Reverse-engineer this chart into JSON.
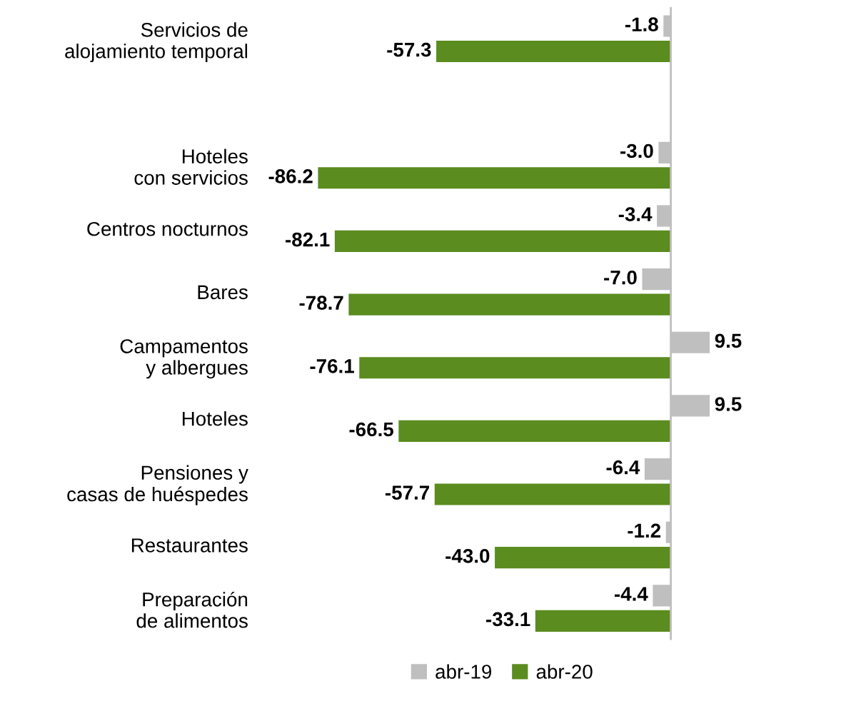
{
  "chart_data": {
    "type": "bar",
    "orientation": "horizontal",
    "legend": "bottom",
    "grid": false,
    "categories": [
      "Servicios de\nalojamiento temporal",
      null,
      "Hoteles\ncon servicios",
      "Centros nocturnos",
      "Bares",
      "Campamentos\ny albergues",
      "Hoteles",
      "Pensiones y\ncasas de huéspedes",
      "Restaurantes",
      "Preparación\nde alimentos"
    ],
    "series": [
      {
        "name": "abr-19",
        "color": "#bfbfbf",
        "values": [
          -1.8,
          null,
          -3.0,
          -3.4,
          -7.0,
          9.5,
          9.5,
          -6.4,
          -1.2,
          -4.4
        ],
        "value_labels": [
          "-1.8",
          null,
          "-3.0",
          "-3.4",
          "-7.0",
          "9.5",
          "9.5",
          "-6.4",
          "-1.2",
          "-4.4"
        ]
      },
      {
        "name": "abr-20",
        "color": "#5b8c1f",
        "values": [
          -57.3,
          null,
          -86.2,
          -82.1,
          -78.7,
          -76.1,
          -66.5,
          -57.7,
          -43.0,
          -33.1
        ],
        "value_labels": [
          "-57.3",
          null,
          "-86.2",
          "-82.1",
          "-78.7",
          "-76.1",
          "-66.5",
          "-57.7",
          "-43.0",
          "-33.1"
        ]
      }
    ]
  }
}
